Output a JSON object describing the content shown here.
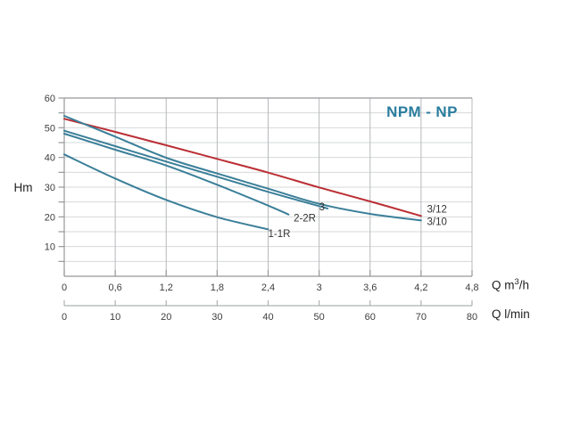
{
  "colors": {
    "curve_teal": "#3b7f99",
    "curve_red": "#bb2f35",
    "title_text": "#2a7d9e",
    "grid_horizontal": "#d6d8da",
    "grid_vertical": "#b6b9bc",
    "axis": "#96989b",
    "secondary_axis": "#aeb1b4",
    "tick_text": "#3e3e3e",
    "curve_label_text": "#333333"
  },
  "chart_data": {
    "type": "line",
    "title": "NPM - NP",
    "grid": true,
    "legend_position": "inline-end-labels",
    "y_axis": {
      "label": "Hm",
      "min": 0,
      "max": 60,
      "tick_step": 10,
      "minor_tick_step": 5,
      "ticks": [
        10,
        20,
        30,
        40,
        50,
        60
      ]
    },
    "x_axis_primary": {
      "label_prefix": "Q m",
      "label_sup": "3",
      "label_suffix": "/h",
      "min": 0,
      "max": 4.8,
      "tick_step": 0.6,
      "tick_labels": [
        "0",
        "0,6",
        "1,2",
        "1,8",
        "2,4",
        "3",
        "3,6",
        "4,2",
        "4,8"
      ]
    },
    "x_axis_secondary": {
      "label": "Q l/min",
      "min": 0,
      "max": 80,
      "tick_step": 10,
      "tick_labels": [
        "0",
        "10",
        "20",
        "30",
        "40",
        "50",
        "60",
        "70",
        "80"
      ]
    },
    "series": [
      {
        "name": "3/12",
        "color_key": "curve_red",
        "points": [
          [
            0,
            53
          ],
          [
            0.6,
            48.6
          ],
          [
            1.2,
            44.1
          ],
          [
            1.8,
            39.5
          ],
          [
            2.4,
            34.9
          ],
          [
            3.0,
            29.9
          ],
          [
            3.6,
            25.2
          ],
          [
            4.2,
            20.3
          ]
        ]
      },
      {
        "name": "3/10",
        "color_key": "curve_teal",
        "points": [
          [
            0,
            54
          ],
          [
            0.6,
            47.0
          ],
          [
            1.2,
            39.9
          ],
          [
            1.8,
            34.6
          ],
          [
            2.4,
            29.5
          ],
          [
            3.0,
            24.4
          ],
          [
            3.6,
            21.0
          ],
          [
            4.2,
            18.8
          ]
        ]
      },
      {
        "name": "3",
        "color_key": "curve_teal",
        "points": [
          [
            0,
            49
          ],
          [
            0.6,
            43.8
          ],
          [
            1.2,
            38.6
          ],
          [
            1.8,
            33.5
          ],
          [
            2.4,
            28.4
          ],
          [
            3.0,
            23.6
          ],
          [
            3.1,
            22.8
          ]
        ]
      },
      {
        "name": "2-2R",
        "color_key": "curve_teal",
        "points": [
          [
            0,
            48
          ],
          [
            0.6,
            42.6
          ],
          [
            1.2,
            37.3
          ],
          [
            1.8,
            30.8
          ],
          [
            2.4,
            23.8
          ],
          [
            2.64,
            20.8
          ]
        ]
      },
      {
        "name": "1-1R",
        "color_key": "curve_teal",
        "points": [
          [
            0,
            41
          ],
          [
            0.6,
            32.9
          ],
          [
            1.2,
            25.7
          ],
          [
            1.8,
            19.9
          ],
          [
            2.4,
            15.8
          ]
        ]
      }
    ],
    "curve_labels": [
      {
        "text": "3",
        "x": 3.0,
        "y": 22.2
      },
      {
        "text": "2-2R",
        "x": 2.7,
        "y": 18.4
      },
      {
        "text": "1-1R",
        "x": 2.4,
        "y": 13.2
      },
      {
        "text": "3/12",
        "x": 4.27,
        "y": 21.5
      },
      {
        "text": "3/10",
        "x": 4.27,
        "y": 17.2
      }
    ]
  }
}
